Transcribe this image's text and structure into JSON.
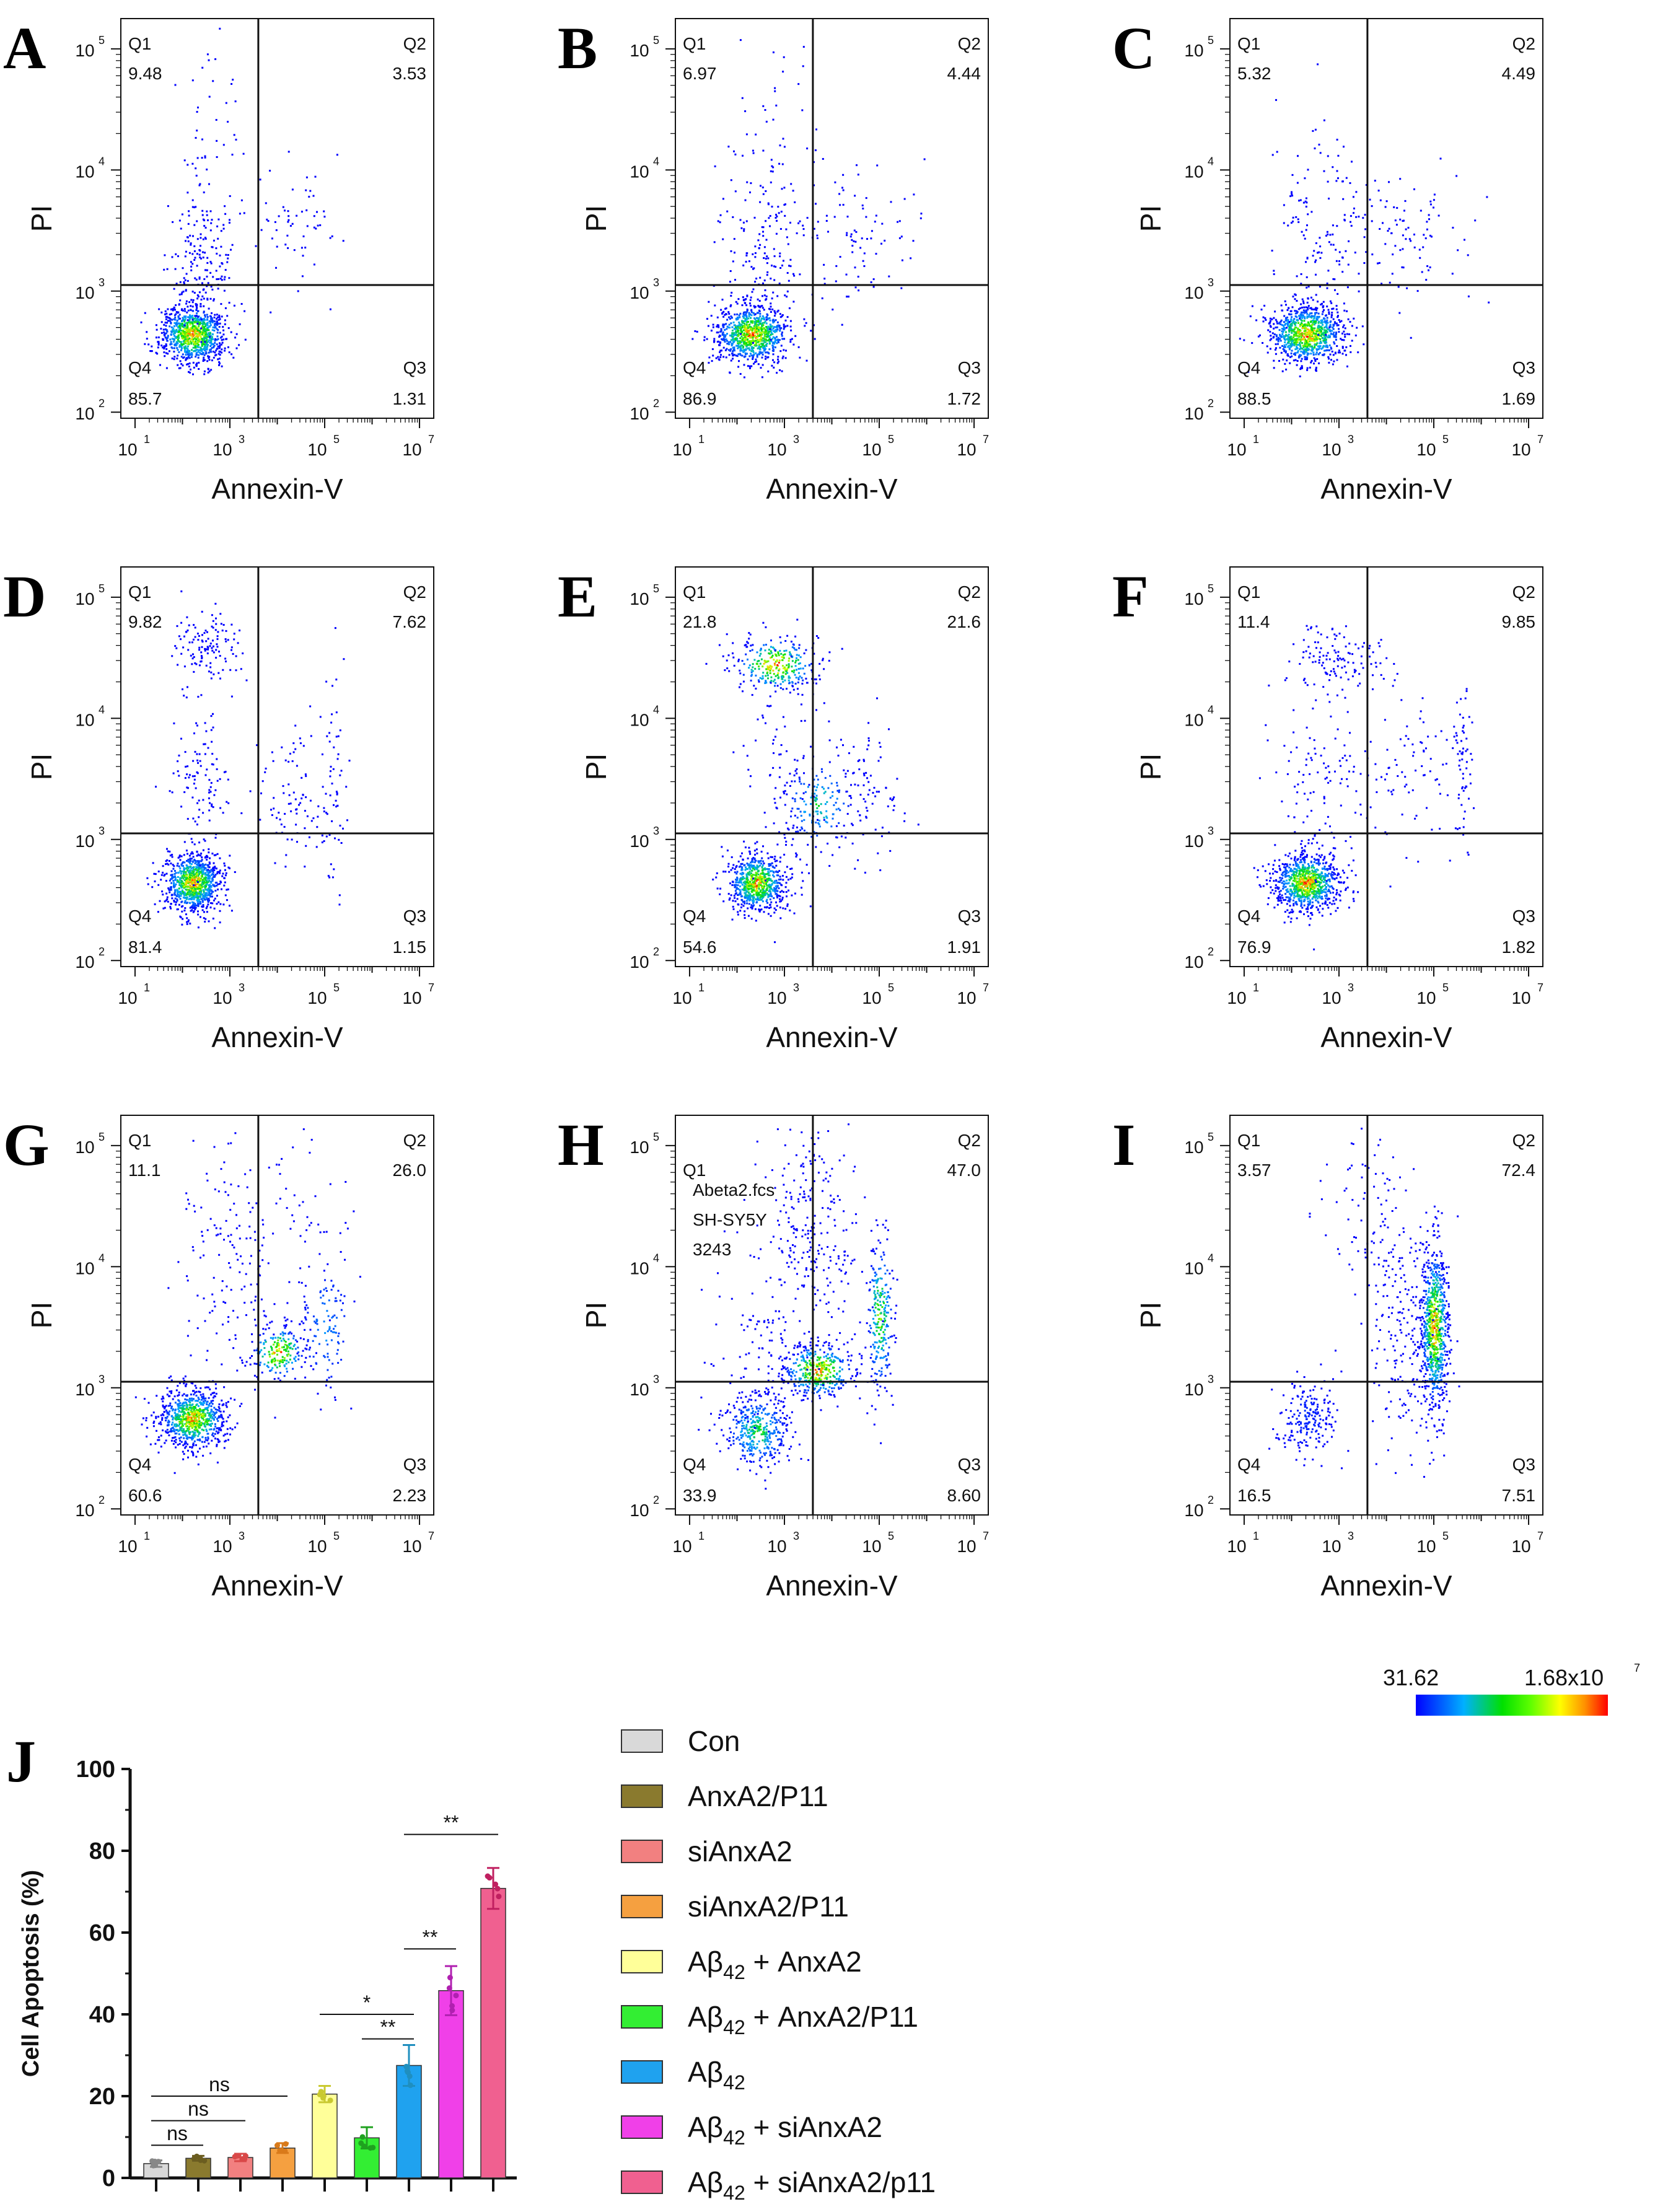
{
  "chart_data": [
    {
      "type": "scatter",
      "panel": "A",
      "xlabel": "Annexin-V",
      "ylabel": "PI",
      "quadrants": {
        "Q1": "9.48",
        "Q2": "3.53",
        "Q3": "1.31",
        "Q4": "85.7"
      },
      "qnames": [
        "Q1",
        "Q2",
        "Q3",
        "Q4"
      ],
      "xticks": [
        "10",
        "10",
        "10",
        "10"
      ],
      "xexp": [
        "1",
        "3",
        "5",
        "7"
      ],
      "yticks": [
        "10",
        "10",
        "10",
        "10"
      ],
      "yexp": [
        "2",
        "3",
        "4",
        "5"
      ],
      "xlim": [
        1,
        7
      ],
      "ylim": [
        2,
        5.2
      ]
    },
    {
      "type": "scatter",
      "panel": "B",
      "xlabel": "Annexin-V",
      "ylabel": "PI",
      "quadrants": {
        "Q1": "6.97",
        "Q2": "4.44",
        "Q3": "1.72",
        "Q4": "86.9"
      },
      "qnames": [
        "Q1",
        "Q2",
        "Q3",
        "Q4"
      ],
      "xticks": [
        "10",
        "10",
        "10",
        "10"
      ],
      "xexp": [
        "1",
        "3",
        "5",
        "7"
      ],
      "yticks": [
        "10",
        "10",
        "10",
        "10"
      ],
      "yexp": [
        "2",
        "3",
        "4",
        "5"
      ],
      "xlim": [
        1,
        7
      ],
      "ylim": [
        2,
        5.2
      ]
    },
    {
      "type": "scatter",
      "panel": "C",
      "xlabel": "Annexin-V",
      "ylabel": "PI",
      "quadrants": {
        "Q1": "5.32",
        "Q2": "4.49",
        "Q3": "1.69",
        "Q4": "88.5"
      },
      "qnames": [
        "Q1",
        "Q2",
        "Q3",
        "Q4"
      ],
      "xticks": [
        "10",
        "10",
        "10",
        "10"
      ],
      "xexp": [
        "1",
        "3",
        "5",
        "7"
      ],
      "yticks": [
        "10",
        "10",
        "10",
        "10"
      ],
      "yexp": [
        "2",
        "3",
        "4",
        "5"
      ],
      "xlim": [
        1,
        7
      ],
      "ylim": [
        2,
        5.2
      ]
    },
    {
      "type": "scatter",
      "panel": "D",
      "xlabel": "Annexin-V",
      "ylabel": "PI",
      "quadrants": {
        "Q1": "9.82",
        "Q2": "7.62",
        "Q3": "1.15",
        "Q4": "81.4"
      },
      "qnames": [
        "Q1",
        "Q2",
        "Q3",
        "Q4"
      ],
      "xticks": [
        "10",
        "10",
        "10",
        "10"
      ],
      "xexp": [
        "1",
        "3",
        "5",
        "7"
      ],
      "yticks": [
        "10",
        "10",
        "10",
        "10"
      ],
      "yexp": [
        "2",
        "3",
        "4",
        "5"
      ],
      "xlim": [
        1,
        7
      ],
      "ylim": [
        2,
        5.2
      ]
    },
    {
      "type": "scatter",
      "panel": "E",
      "xlabel": "Annexin-V",
      "ylabel": "PI",
      "quadrants": {
        "Q1": "21.8",
        "Q2": "21.6",
        "Q3": "1.91",
        "Q4": "54.6"
      },
      "qnames": [
        "Q1",
        "Q2",
        "Q3",
        "Q4"
      ],
      "xticks": [
        "10",
        "10",
        "10",
        "10"
      ],
      "xexp": [
        "1",
        "3",
        "5",
        "7"
      ],
      "yticks": [
        "10",
        "10",
        "10",
        "10"
      ],
      "yexp": [
        "2",
        "3",
        "4",
        "5"
      ],
      "xlim": [
        1,
        7
      ],
      "ylim": [
        2,
        5.2
      ]
    },
    {
      "type": "scatter",
      "panel": "F",
      "xlabel": "Annexin-V",
      "ylabel": "PI",
      "quadrants": {
        "Q1": "11.4",
        "Q2": "9.85",
        "Q3": "1.82",
        "Q4": "76.9"
      },
      "qnames": [
        "Q1",
        "Q2",
        "Q3",
        "Q4"
      ],
      "xticks": [
        "10",
        "10",
        "10",
        "10"
      ],
      "xexp": [
        "1",
        "3",
        "5",
        "7"
      ],
      "yticks": [
        "10",
        "10",
        "10",
        "10"
      ],
      "yexp": [
        "2",
        "3",
        "4",
        "5"
      ],
      "xlim": [
        1,
        7
      ],
      "ylim": [
        2,
        5.2
      ]
    },
    {
      "type": "scatter",
      "panel": "G",
      "xlabel": "Annexin-V",
      "ylabel": "PI",
      "quadrants": {
        "Q1": "11.1",
        "Q2": "26.0",
        "Q3": "2.23",
        "Q4": "60.6"
      },
      "qnames": [
        "Q1",
        "Q2",
        "Q3",
        "Q4"
      ],
      "xticks": [
        "10",
        "10",
        "10",
        "10"
      ],
      "xexp": [
        "1",
        "3",
        "5",
        "7"
      ],
      "yticks": [
        "10",
        "10",
        "10",
        "10"
      ],
      "yexp": [
        "2",
        "3",
        "4",
        "5"
      ],
      "xlim": [
        1,
        7
      ],
      "ylim": [
        2,
        5.2
      ]
    },
    {
      "type": "scatter",
      "panel": "H",
      "xlabel": "Annexin-V",
      "ylabel": "PI",
      "quadrants": {
        "Q1": "Q1",
        "Q2": "47.0",
        "Q3": "8.60",
        "Q4": "33.9"
      },
      "qnames": [
        "",
        "Q2",
        "Q3",
        "Q4"
      ],
      "xticks": [
        "10",
        "10",
        "10",
        "10"
      ],
      "xexp": [
        "1",
        "3",
        "5",
        "7"
      ],
      "yticks": [
        "10",
        "10",
        "10",
        "10"
      ],
      "yexp": [
        "2",
        "3",
        "4",
        "5"
      ],
      "xlim": [
        1,
        7
      ],
      "ylim": [
        2,
        5.2
      ],
      "annotation": [
        "Abeta2.fcs",
        "SH-SY5Y",
        "3243"
      ]
    },
    {
      "type": "scatter",
      "panel": "I",
      "xlabel": "Annexin-V",
      "ylabel": "PI",
      "quadrants": {
        "Q1": "3.57",
        "Q2": "72.4",
        "Q3": "7.51",
        "Q4": "16.5"
      },
      "qnames": [
        "Q1",
        "Q2",
        "Q3",
        "Q4"
      ],
      "xticks": [
        "10",
        "10",
        "10",
        "10"
      ],
      "xexp": [
        "1",
        "3",
        "5",
        "7"
      ],
      "yticks": [
        "10",
        "10",
        "10",
        "10"
      ],
      "yexp": [
        "2",
        "3",
        "4",
        "5"
      ],
      "xlim": [
        1,
        7
      ],
      "ylim": [
        2,
        5.2
      ]
    },
    {
      "type": "bar",
      "panel": "J",
      "ylabel": "Cell Apoptosis (%)",
      "ylim": [
        0,
        100
      ],
      "yticks": [
        "0",
        "20",
        "40",
        "60",
        "80",
        "100"
      ],
      "categories": [
        "Con",
        "AnxA2/P11",
        "siAnxA2",
        "siAnxA2/P11",
        "Aβ42 + AnxA2",
        "Aβ42 + AnxA2/P11",
        "Aβ42",
        "Aβ42 + siAnxA2",
        "Aβ42 + siAnxA2/p11"
      ],
      "values": [
        3.5,
        4.8,
        5.0,
        7.3,
        20.5,
        9.8,
        27.5,
        45.8,
        70.8
      ],
      "errors": [
        0.8,
        0.6,
        0.9,
        1.2,
        2.0,
        2.6,
        5.0,
        6.0,
        5.0
      ],
      "colors": [
        "#d9d9d9",
        "#8a7a2e",
        "#f28080",
        "#f5a040",
        "#ffff99",
        "#33ee33",
        "#1fa2ef",
        "#f040e8",
        "#f06090"
      ],
      "point_colors": [
        "#888888",
        "#6b5d20",
        "#d94848",
        "#d97a1a",
        "#c9c930",
        "#1fa21f",
        "#1f8fbf",
        "#b020b0",
        "#c02060"
      ],
      "significance": [
        {
          "from": 0,
          "to": 1,
          "label": "ns",
          "level": 8
        },
        {
          "from": 0,
          "to": 2,
          "label": "ns",
          "level": 14
        },
        {
          "from": 0,
          "to": 3,
          "label": "ns",
          "level": 20
        },
        {
          "from": 4,
          "to": 6,
          "label": "*",
          "level": 40
        },
        {
          "from": 5,
          "to": 6,
          "label": "**",
          "level": 34
        },
        {
          "from": 6,
          "to": 7,
          "label": "**",
          "level": 56
        },
        {
          "from": 6,
          "to": 8,
          "label": "**",
          "level": 84
        }
      ]
    }
  ],
  "panel_J_letter": "J",
  "colorbar": {
    "min_label": "31.62",
    "max_label": "1.68x10",
    "max_exp": "7"
  },
  "legend": {
    "items": [
      {
        "main": "Con",
        "sub": "",
        "rest": ""
      },
      {
        "main": "AnxA2/P11",
        "sub": "",
        "rest": ""
      },
      {
        "main": "siAnxA2",
        "sub": "",
        "rest": ""
      },
      {
        "main": "siAnxA2/P11",
        "sub": "",
        "rest": ""
      },
      {
        "main": "Aβ",
        "sub": "42",
        "rest": " + AnxA2"
      },
      {
        "main": "Aβ",
        "sub": "42",
        "rest": " + AnxA2/P11"
      },
      {
        "main": "Aβ",
        "sub": "42",
        "rest": ""
      },
      {
        "main": "Aβ",
        "sub": "42",
        "rest": " + siAnxA2"
      },
      {
        "main": "Aβ",
        "sub": "42",
        "rest": " + siAnxA2/p11"
      }
    ]
  }
}
